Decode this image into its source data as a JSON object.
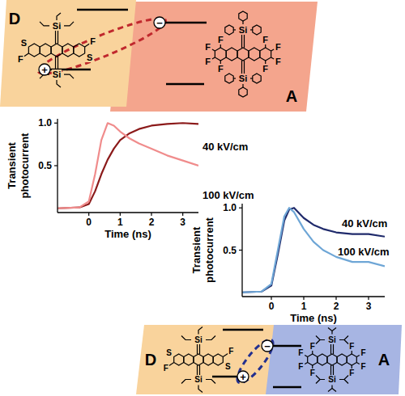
{
  "chart_data": [
    {
      "type": "line",
      "x_label": "Time (ns)",
      "y_label": "Transient photocurrent",
      "x": [
        -1,
        -0.3,
        0,
        0.2,
        0.4,
        0.6,
        0.8,
        1,
        1.3,
        1.6,
        2,
        2.5,
        3,
        3.5
      ],
      "series": [
        {
          "name": "40 kV/cm",
          "color": "#8b1a1a",
          "values": [
            0,
            0.01,
            0.05,
            0.2,
            0.4,
            0.57,
            0.7,
            0.8,
            0.88,
            0.93,
            0.97,
            0.99,
            1,
            0.99
          ]
        },
        {
          "name": "100 kV/cm",
          "color": "#f08c8c",
          "values": [
            0,
            0.01,
            0.08,
            0.4,
            0.8,
            1,
            0.97,
            0.9,
            0.82,
            0.76,
            0.7,
            0.62,
            0.56,
            0.5
          ]
        }
      ],
      "xlim": [
        -1,
        3.5
      ],
      "ylim": [
        -0.05,
        1.05
      ],
      "xticks": [
        0,
        1,
        2,
        3
      ],
      "yticks": [
        0.5,
        {
          "value": 1,
          "label": "1.0"
        }
      ]
    },
    {
      "type": "line",
      "x_label": "Time (ns)",
      "y_label": "Transient photocurrent",
      "x": [
        -0.9,
        -0.3,
        0,
        0.2,
        0.4,
        0.55,
        0.7,
        1,
        1.3,
        1.6,
        2,
        2.5,
        3,
        3.5
      ],
      "series": [
        {
          "name": "40 kV/cm",
          "color": "#1f2a6b",
          "values": [
            0,
            0.01,
            0.08,
            0.45,
            0.85,
            0.98,
            1,
            0.88,
            0.8,
            0.75,
            0.71,
            0.69,
            0.69,
            0.66
          ]
        },
        {
          "name": "100 kV/cm",
          "color": "#6ea6d6",
          "values": [
            0,
            0.01,
            0.1,
            0.5,
            0.9,
            1,
            0.95,
            0.75,
            0.6,
            0.5,
            0.42,
            0.36,
            0.36,
            0.31
          ]
        }
      ],
      "xlim": [
        -0.9,
        3.5
      ],
      "ylim": [
        -0.05,
        1.05
      ],
      "xticks": [
        0,
        1,
        2,
        3
      ],
      "yticks": [
        0.5,
        {
          "value": 1,
          "label": "1.0"
        }
      ]
    }
  ],
  "diagram": {
    "hole": "+",
    "electron": "−",
    "rows": [
      {
        "donor": {
          "label": "D",
          "si": [
            "Si",
            "Si"
          ],
          "s": [
            "S",
            "S"
          ],
          "f": [
            "F",
            "F"
          ]
        },
        "acceptor": {
          "label": "A",
          "si": [
            "Si",
            "Si"
          ],
          "f": [
            "F",
            "F",
            "F",
            "F",
            "F",
            "F",
            "F",
            "F"
          ]
        }
      },
      {
        "donor": {
          "label": "D",
          "si": [
            "Si",
            "Si"
          ],
          "s": [
            "S",
            "S"
          ],
          "f": [
            "F",
            "F"
          ]
        },
        "acceptor": {
          "label": "A",
          "si": [
            "Si",
            "Si"
          ],
          "f": [
            "F",
            "F",
            "F",
            "F",
            "F",
            "F",
            "F",
            "F"
          ]
        }
      }
    ]
  }
}
